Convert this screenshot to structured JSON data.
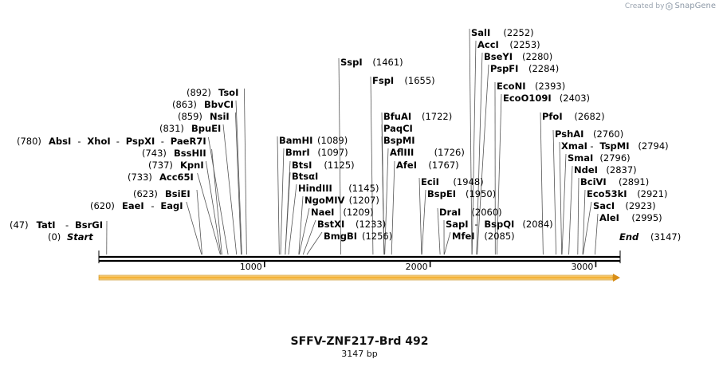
{
  "credit": {
    "prefix": "Created by",
    "brand": "SnapGene",
    "icon": "snapgene-logo-icon"
  },
  "map": {
    "title": "SFFV-ZNF217-Brd 492",
    "length_label": "3147 bp",
    "length": 3147,
    "ticks": [
      "1000",
      "2000",
      "3000"
    ],
    "start_label": "Start",
    "start_pos": "(0)",
    "end_label": "End",
    "end_pos": "(3147)",
    "feature_arrow_color": "#f2a821"
  },
  "sites": [
    {
      "label": "TatI",
      "pos": "(47)",
      "bp": 47
    },
    {
      "label": "BsrGI",
      "pos": "",
      "bp": 47
    },
    {
      "label": "EaeI",
      "pos": "(620)",
      "bp": 620
    },
    {
      "label": "EagI",
      "pos": "",
      "bp": 620
    },
    {
      "label": "BsiEI",
      "pos": "(623)",
      "bp": 623
    },
    {
      "label": "Acc65I",
      "pos": "(733)",
      "bp": 733
    },
    {
      "label": "KpnI",
      "pos": "(737)",
      "bp": 737
    },
    {
      "label": "BssHII",
      "pos": "(743)",
      "bp": 743
    },
    {
      "label": "AbsI",
      "pos": "(780)",
      "bp": 780
    },
    {
      "label": "XhoI",
      "pos": "",
      "bp": 780
    },
    {
      "label": "PspXI",
      "pos": "",
      "bp": 780
    },
    {
      "label": "PaeR7I",
      "pos": "",
      "bp": 780
    },
    {
      "label": "BpuEI",
      "pos": "(831)",
      "bp": 831
    },
    {
      "label": "NsiI",
      "pos": "(859)",
      "bp": 859
    },
    {
      "label": "BbvCI",
      "pos": "(863)",
      "bp": 863
    },
    {
      "label": "TsoI",
      "pos": "(892)",
      "bp": 892
    },
    {
      "label": "BamHI",
      "pos": "(1089)",
      "bp": 1089
    },
    {
      "label": "BmrI",
      "pos": "(1097)",
      "bp": 1097
    },
    {
      "label": "BtsI",
      "pos": "(1125)",
      "bp": 1125
    },
    {
      "label": "BtsαI",
      "pos": "",
      "bp": 1125
    },
    {
      "label": "HindIII",
      "pos": "(1145)",
      "bp": 1145
    },
    {
      "label": "NgoMIV",
      "pos": "(1207)",
      "bp": 1207
    },
    {
      "label": "NaeI",
      "pos": "(1209)",
      "bp": 1209
    },
    {
      "label": "BstXI",
      "pos": "(1233)",
      "bp": 1233
    },
    {
      "label": "BmgBI",
      "pos": "(1256)",
      "bp": 1256
    },
    {
      "label": "SspI",
      "pos": "(1461)",
      "bp": 1461
    },
    {
      "label": "FspI",
      "pos": "(1655)",
      "bp": 1655
    },
    {
      "label": "BfuAI",
      "pos": "(1722)",
      "bp": 1722
    },
    {
      "label": "PaqCI",
      "pos": "",
      "bp": 1722
    },
    {
      "label": "BspMI",
      "pos": "",
      "bp": 1722
    },
    {
      "label": "AflIII",
      "pos": "(1726)",
      "bp": 1726
    },
    {
      "label": "AfeI",
      "pos": "(1767)",
      "bp": 1767
    },
    {
      "label": "EciI",
      "pos": "(1948)",
      "bp": 1948
    },
    {
      "label": "BspEI",
      "pos": "(1950)",
      "bp": 1950
    },
    {
      "label": "DraI",
      "pos": "(2060)",
      "bp": 2060
    },
    {
      "label": "SapI",
      "pos": "",
      "bp": 2084
    },
    {
      "label": "BspQI",
      "pos": "(2084)",
      "bp": 2084
    },
    {
      "label": "MfeI",
      "pos": "(2085)",
      "bp": 2085
    },
    {
      "label": "SalI",
      "pos": "(2252)",
      "bp": 2252
    },
    {
      "label": "AccI",
      "pos": "(2253)",
      "bp": 2253
    },
    {
      "label": "BseYI",
      "pos": "(2280)",
      "bp": 2280
    },
    {
      "label": "PspFI",
      "pos": "(2284)",
      "bp": 2284
    },
    {
      "label": "EcoNI",
      "pos": "(2393)",
      "bp": 2393
    },
    {
      "label": "EcoO109I",
      "pos": "(2403)",
      "bp": 2403
    },
    {
      "label": "PfoI",
      "pos": "(2682)",
      "bp": 2682
    },
    {
      "label": "PshAI",
      "pos": "(2760)",
      "bp": 2760
    },
    {
      "label": "XmaI",
      "pos": "",
      "bp": 2794
    },
    {
      "label": "TspMI",
      "pos": "(2794)",
      "bp": 2794
    },
    {
      "label": "SmaI",
      "pos": "(2796)",
      "bp": 2796
    },
    {
      "label": "NdeI",
      "pos": "(2837)",
      "bp": 2837
    },
    {
      "label": "BciVI",
      "pos": "(2891)",
      "bp": 2891
    },
    {
      "label": "Eco53kI",
      "pos": "(2921)",
      "bp": 2921
    },
    {
      "label": "SacI",
      "pos": "(2923)",
      "bp": 2923
    },
    {
      "label": "AleI",
      "pos": "(2995)",
      "bp": 2995
    }
  ]
}
